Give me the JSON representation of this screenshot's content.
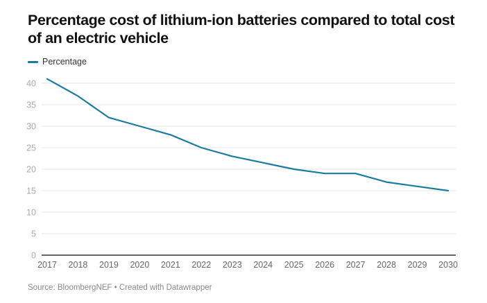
{
  "chart_data": {
    "type": "line",
    "title": "Percentage cost of lithium-ion batteries compared to total cost of an electric vehicle",
    "xlabel": "",
    "ylabel": "",
    "x": [
      2017,
      2018,
      2019,
      2020,
      2021,
      2022,
      2023,
      2024,
      2025,
      2026,
      2027,
      2028,
      2029,
      2030
    ],
    "x_tick_labels": [
      "2017",
      "2018",
      "2019",
      "2020",
      "2021",
      "2022",
      "2023",
      "2024",
      "2025",
      "2026",
      "2027",
      "2028",
      "2029",
      "2030"
    ],
    "series": [
      {
        "name": "Percentage",
        "color": "#1a7ba0",
        "values": [
          41,
          37,
          32,
          30,
          28,
          25,
          23,
          21.5,
          20,
          19,
          19,
          17,
          16,
          15
        ]
      }
    ],
    "ylim": [
      0,
      40
    ],
    "y_ticks": [
      0,
      5,
      10,
      15,
      20,
      25,
      30,
      35,
      40
    ],
    "grid": true,
    "legend_position": "top-left",
    "source": "Source: BloombergNEF • Created with Datawrapper"
  },
  "colors": {
    "line": "#1a7ba0",
    "grid": "#e6e6e6",
    "baseline": "#333333"
  }
}
